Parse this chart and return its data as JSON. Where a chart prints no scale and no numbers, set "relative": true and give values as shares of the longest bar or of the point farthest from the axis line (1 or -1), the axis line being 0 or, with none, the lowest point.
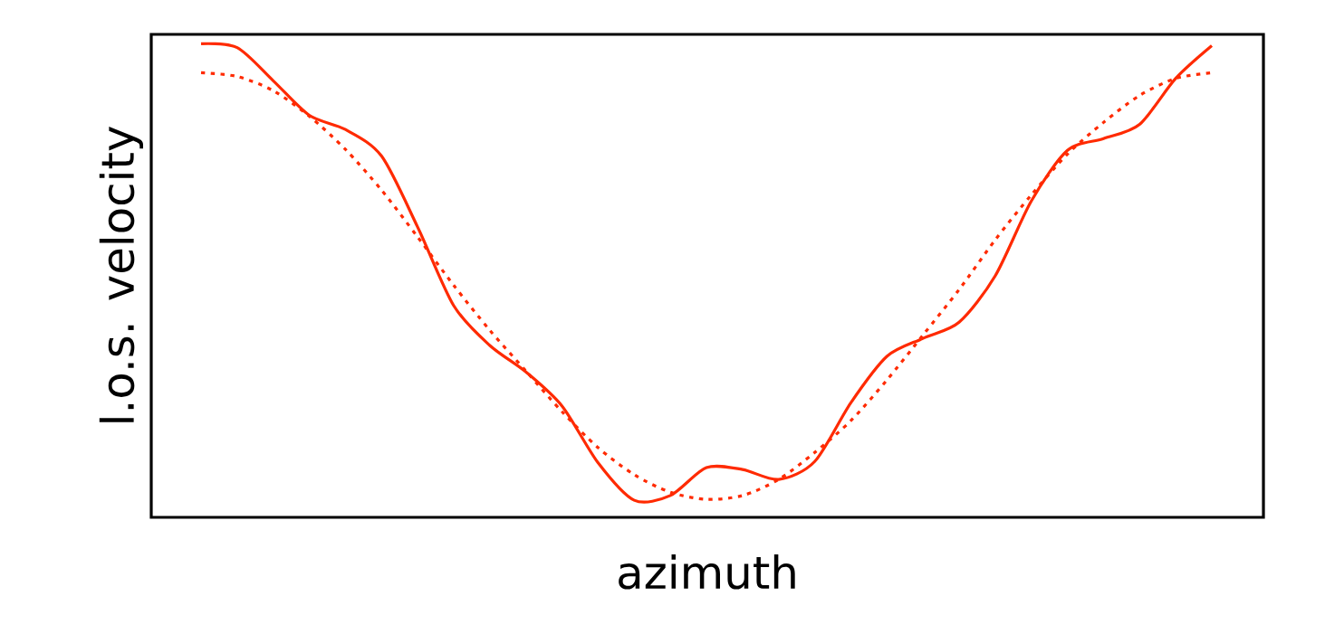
{
  "chart_data": {
    "type": "line",
    "xlabel": "azimuth",
    "ylabel": "l.o.s. velocity",
    "relative": true,
    "tick_labels": false,
    "marker": "none",
    "categories": [
      null,
      null,
      null,
      null,
      null,
      null,
      null,
      null,
      null,
      null,
      null,
      null,
      null,
      null,
      null,
      null,
      null,
      null,
      null,
      null,
      null,
      null,
      null,
      null,
      null,
      null,
      null,
      null,
      null
    ],
    "series": [
      {
        "color": "#ff2a00",
        "line_style": "solid",
        "values": [
          1.0,
          0.992,
          0.922,
          0.849,
          0.819,
          0.763,
          0.613,
          0.447,
          0.363,
          0.307,
          0.235,
          0.115,
          0.036,
          0.046,
          0.105,
          0.101,
          0.08,
          0.118,
          0.242,
          0.34,
          0.378,
          0.412,
          0.51,
          0.668,
          0.775,
          0.8,
          0.83,
          0.927,
          0.996
        ]
      },
      {
        "color": "#ff2a00",
        "line_style": "dotted",
        "values": [
          0.939,
          0.931,
          0.901,
          0.847,
          0.777,
          0.691,
          0.592,
          0.49,
          0.395,
          0.309,
          0.223,
          0.147,
          0.09,
          0.053,
          0.038,
          0.046,
          0.08,
          0.137,
          0.204,
          0.29,
          0.385,
          0.481,
          0.586,
          0.681,
          0.767,
          0.834,
          0.891,
          0.927,
          0.939
        ]
      }
    ]
  }
}
